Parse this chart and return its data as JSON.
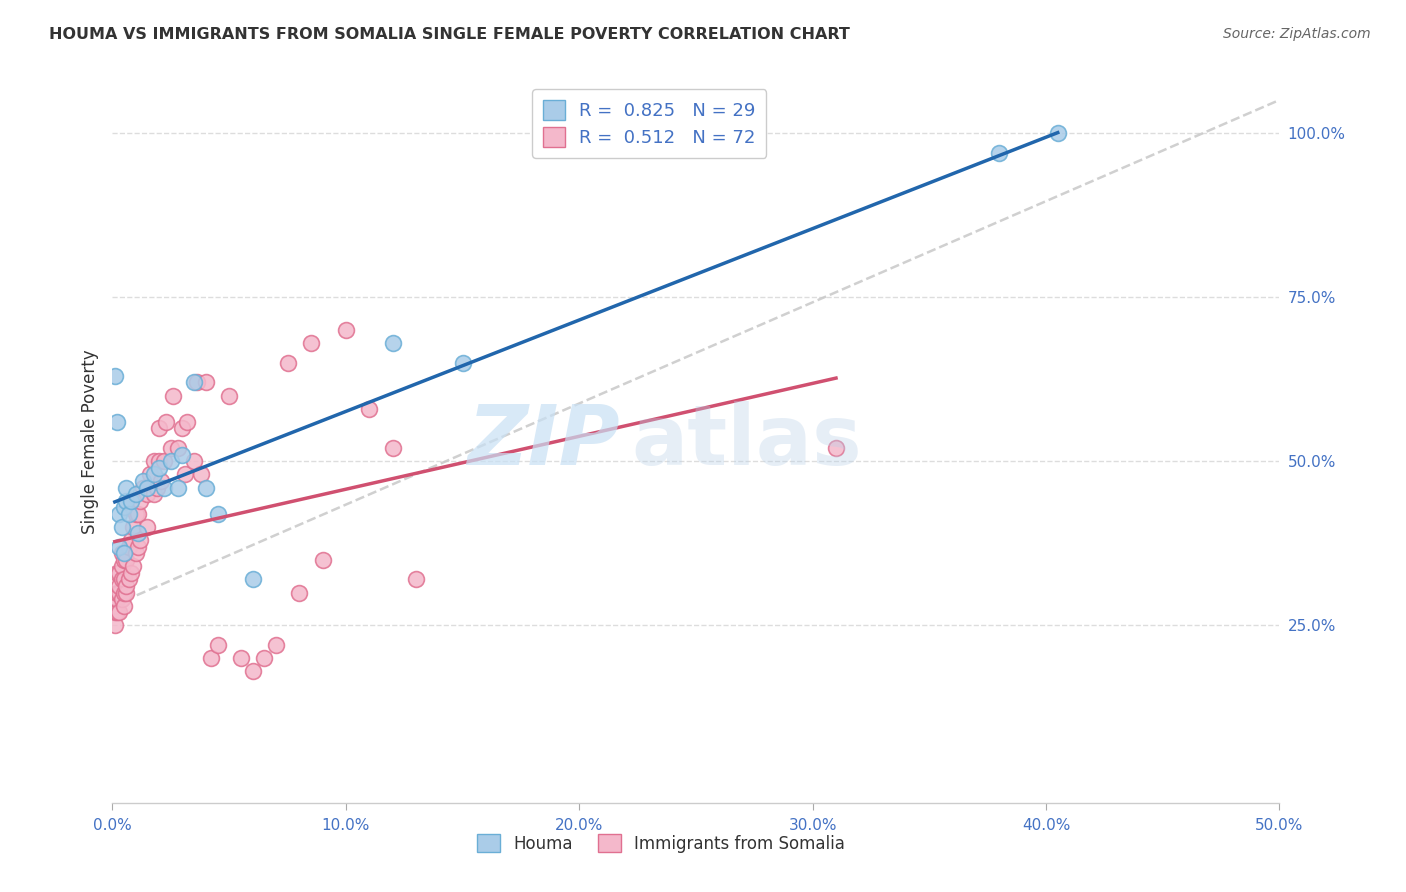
{
  "title": "HOUMA VS IMMIGRANTS FROM SOMALIA SINGLE FEMALE POVERTY CORRELATION CHART",
  "source": "Source: ZipAtlas.com",
  "ylabel": "Single Female Poverty",
  "watermark_zip": "ZIP",
  "watermark_atlas": "atlas",
  "legend_labels": [
    "Houma",
    "Immigrants from Somalia"
  ],
  "legend_r": [
    0.825,
    0.512
  ],
  "legend_n": [
    29,
    72
  ],
  "houma_color": "#aacce8",
  "somalia_color": "#f4b8cb",
  "houma_edge_color": "#6aaed6",
  "somalia_edge_color": "#e07090",
  "houma_line_color": "#2166ac",
  "somalia_line_color": "#d05070",
  "ref_line_color": "#c8c8c8",
  "background_color": "#ffffff",
  "grid_color": "#dddddd",
  "title_color": "#333333",
  "axis_label_color": "#333333",
  "tick_label_color": "#4472c4",
  "xlim": [
    0.0,
    0.5
  ],
  "ylim": [
    -0.02,
    1.08
  ],
  "xticks": [
    0.0,
    0.1,
    0.2,
    0.3,
    0.4,
    0.5
  ],
  "xtick_labels": [
    "0.0%",
    "10.0%",
    "20.0%",
    "30.0%",
    "40.0%",
    "50.0%"
  ],
  "yticks_right": [
    0.25,
    0.5,
    0.75,
    1.0
  ],
  "ytick_labels_right": [
    "25.0%",
    "50.0%",
    "75.0%",
    "100.0%"
  ],
  "houma_x": [
    0.001,
    0.002,
    0.003,
    0.003,
    0.004,
    0.005,
    0.005,
    0.006,
    0.006,
    0.007,
    0.008,
    0.01,
    0.011,
    0.013,
    0.015,
    0.018,
    0.02,
    0.022,
    0.025,
    0.028,
    0.03,
    0.035,
    0.04,
    0.045,
    0.06,
    0.12,
    0.15,
    0.38,
    0.405
  ],
  "houma_y": [
    0.63,
    0.56,
    0.37,
    0.42,
    0.4,
    0.36,
    0.43,
    0.44,
    0.46,
    0.42,
    0.44,
    0.45,
    0.39,
    0.47,
    0.46,
    0.48,
    0.49,
    0.46,
    0.5,
    0.46,
    0.51,
    0.62,
    0.46,
    0.42,
    0.32,
    0.68,
    0.65,
    0.97,
    1.0
  ],
  "somalia_x": [
    0.001,
    0.001,
    0.001,
    0.002,
    0.002,
    0.002,
    0.002,
    0.003,
    0.003,
    0.003,
    0.003,
    0.004,
    0.004,
    0.004,
    0.004,
    0.005,
    0.005,
    0.005,
    0.005,
    0.006,
    0.006,
    0.006,
    0.007,
    0.007,
    0.008,
    0.008,
    0.009,
    0.009,
    0.01,
    0.01,
    0.011,
    0.011,
    0.012,
    0.012,
    0.013,
    0.015,
    0.015,
    0.016,
    0.018,
    0.018,
    0.019,
    0.02,
    0.02,
    0.021,
    0.022,
    0.023,
    0.025,
    0.026,
    0.028,
    0.03,
    0.031,
    0.032,
    0.035,
    0.036,
    0.038,
    0.04,
    0.042,
    0.045,
    0.05,
    0.055,
    0.06,
    0.065,
    0.07,
    0.075,
    0.08,
    0.085,
    0.09,
    0.1,
    0.11,
    0.12,
    0.13,
    0.31
  ],
  "somalia_y": [
    0.28,
    0.25,
    0.27,
    0.27,
    0.29,
    0.3,
    0.33,
    0.27,
    0.3,
    0.31,
    0.33,
    0.29,
    0.32,
    0.34,
    0.36,
    0.28,
    0.3,
    0.32,
    0.35,
    0.3,
    0.31,
    0.35,
    0.32,
    0.37,
    0.33,
    0.38,
    0.34,
    0.4,
    0.36,
    0.42,
    0.37,
    0.42,
    0.38,
    0.44,
    0.46,
    0.4,
    0.45,
    0.48,
    0.45,
    0.5,
    0.46,
    0.5,
    0.55,
    0.47,
    0.5,
    0.56,
    0.52,
    0.6,
    0.52,
    0.55,
    0.48,
    0.56,
    0.5,
    0.62,
    0.48,
    0.62,
    0.2,
    0.22,
    0.6,
    0.2,
    0.18,
    0.2,
    0.22,
    0.65,
    0.3,
    0.68,
    0.35,
    0.7,
    0.58,
    0.52,
    0.32,
    0.52
  ]
}
